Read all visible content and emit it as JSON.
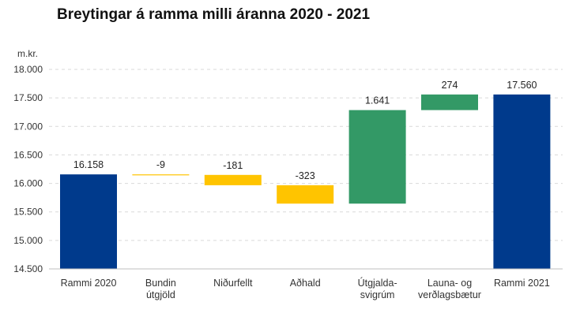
{
  "chart_data": {
    "type": "bar",
    "subtype": "waterfall",
    "title": "Breytingar á ramma milli áranna 2020 - 2021",
    "ylabel": "m.kr.",
    "xlabel": "",
    "ylim": [
      14500,
      18000
    ],
    "yticks": [
      "14.500",
      "15.000",
      "15.500",
      "16.000",
      "16.500",
      "17.000",
      "17.500",
      "18.000"
    ],
    "ytick_values": [
      14500,
      15000,
      15500,
      16000,
      16500,
      17000,
      17500,
      18000
    ],
    "grid": true,
    "legend": "none",
    "categories": [
      [
        "Rammi 2020"
      ],
      [
        "Bundin",
        "útgjöld"
      ],
      [
        "Niðurfellt"
      ],
      [
        "Aðhald"
      ],
      [
        "Útgjalda-",
        "svigrúm"
      ],
      [
        "Launa- og",
        "verðlagsbætur"
      ],
      [
        "Rammi 2021"
      ]
    ],
    "bars": [
      {
        "kind": "total",
        "start": 14500,
        "end": 16158,
        "label": "16.158",
        "color": "#003a8c"
      },
      {
        "kind": "decrease",
        "start": 16158,
        "end": 16149,
        "label": "-9",
        "color": "#ffc400"
      },
      {
        "kind": "decrease",
        "start": 16149,
        "end": 15968,
        "label": "-181",
        "color": "#ffc400"
      },
      {
        "kind": "decrease",
        "start": 15968,
        "end": 15645,
        "label": "-323",
        "color": "#ffc400"
      },
      {
        "kind": "increase",
        "start": 15645,
        "end": 17286,
        "label": "1.641",
        "color": "#339966"
      },
      {
        "kind": "increase",
        "start": 17286,
        "end": 17560,
        "label": "274",
        "color": "#339966"
      },
      {
        "kind": "total",
        "start": 14500,
        "end": 17560,
        "label": "17.560",
        "color": "#003a8c"
      }
    ]
  }
}
